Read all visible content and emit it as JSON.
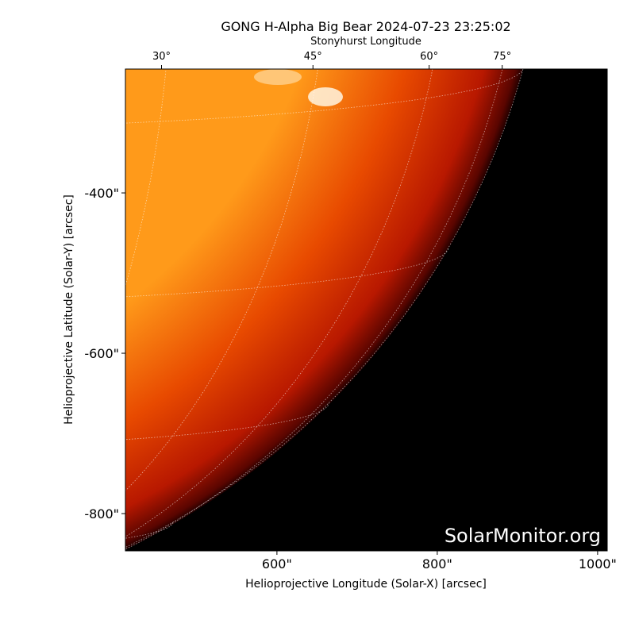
{
  "chart_data": {
    "type": "image",
    "title": "GONG H-Alpha Big Bear 2024-07-23 23:25:02",
    "x_label": "Helioprojective Longitude (Solar-X) [arcsec]",
    "y_label": "Helioprojective Latitude (Solar-Y) [arcsec]",
    "top_label": "Stonyhurst Longitude",
    "watermark": "SolarMonitor.org",
    "xlim": [
      411,
      1012
    ],
    "ylim": [
      -846.5,
      -245.5
    ],
    "xticks": [
      {
        "value": 600,
        "label": "600\""
      },
      {
        "value": 800,
        "label": "800\""
      },
      {
        "value": 1000,
        "label": "1000\""
      }
    ],
    "yticks": [
      {
        "value": -400,
        "label": "-400\""
      },
      {
        "value": -600,
        "label": "-600\""
      },
      {
        "value": -800,
        "label": "-800\""
      }
    ],
    "top_ticks": [
      {
        "value": 30,
        "label": "30°"
      },
      {
        "value": 45,
        "label": "45°"
      },
      {
        "value": 60,
        "label": "60°"
      },
      {
        "value": 75,
        "label": "75°"
      }
    ]
  }
}
